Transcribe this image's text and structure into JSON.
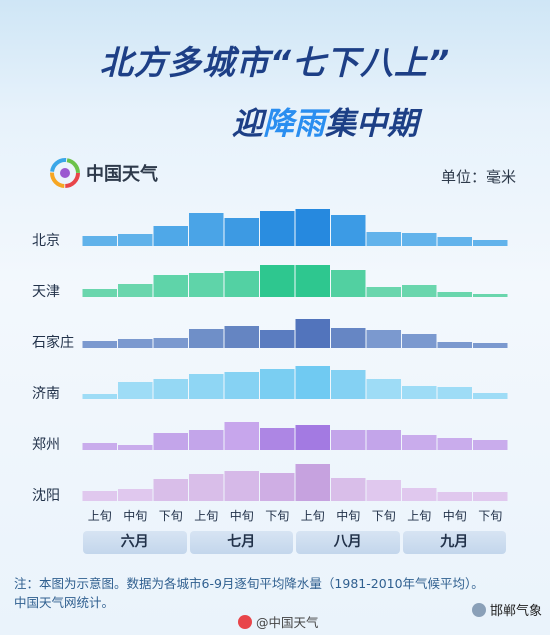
{
  "title": {
    "line1": "北方多城市“七下八上”",
    "line2_pre": "迎",
    "line2_hl": "降雨",
    "line2_post": "集中期"
  },
  "brand": {
    "name": "中国天气",
    "logo_icon": "weather-china-logo-icon"
  },
  "unit_label": "单位：毫米",
  "note": {
    "line1": "注：本图为示意图。数据为各城市6-9月逐旬平均降水量（1981-2010年气候平均）。",
    "line2": "中国天气网统计。"
  },
  "footer": {
    "weibo": "@中国天气",
    "wechat": "邯郸气象"
  },
  "chart_data": {
    "type": "bar",
    "categories": [
      "上旬",
      "中旬",
      "下旬",
      "上旬",
      "中旬",
      "下旬",
      "上旬",
      "中旬",
      "下旬",
      "上旬",
      "中旬",
      "下旬"
    ],
    "months": [
      "六月",
      "七月",
      "八月",
      "九月"
    ],
    "series": [
      {
        "name": "北京",
        "color": "#5aaee8",
        "values": [
          10,
          12,
          20,
          33,
          28,
          35,
          37,
          31,
          14,
          13,
          9,
          6
        ],
        "colors": [
          "#60b2ea",
          "#60b2ea",
          "#4fa8e8",
          "#4aa4e7",
          "#3d9ae3",
          "#2a8de0",
          "#2689df",
          "#3c9be5",
          "#62b3eb",
          "#62b3eb",
          "#62b3eb",
          "#62b3eb"
        ]
      },
      {
        "name": "天津",
        "color": "#5ed3a9",
        "values": [
          8,
          13,
          22,
          24,
          26,
          32,
          32,
          27,
          10,
          12,
          5,
          3
        ],
        "colors": [
          "#6ad6ad",
          "#6ad6ad",
          "#5fd4a9",
          "#5fd4a9",
          "#53d1a3",
          "#2ec78f",
          "#2ec78f",
          "#52d0a1",
          "#6ad6ad",
          "#6ad6ad",
          "#6ad6ad",
          "#6ad6ad"
        ]
      },
      {
        "name": "石家庄",
        "color": "#6f8fc8",
        "values": [
          7,
          9,
          10,
          19,
          22,
          18,
          29,
          20,
          18,
          14,
          6,
          5
        ],
        "colors": [
          "#7b99cf",
          "#7b99cf",
          "#7b99cf",
          "#6f8fc8",
          "#6585c2",
          "#5a7cc0",
          "#5274bc",
          "#6686c4",
          "#7b99cf",
          "#7b99cf",
          "#7b99cf",
          "#7b99cf"
        ]
      },
      {
        "name": "济南",
        "color": "#8fd6f4",
        "values": [
          5,
          17,
          20,
          25,
          27,
          30,
          33,
          29,
          20,
          13,
          12,
          6
        ],
        "colors": [
          "#9edcf6",
          "#9edcf6",
          "#95d8f4",
          "#8fd6f4",
          "#86d2f3",
          "#7acef2",
          "#70caf2",
          "#84d1f3",
          "#9edcf6",
          "#9edcf6",
          "#9edcf6",
          "#9edcf6"
        ]
      },
      {
        "name": "郑州",
        "color": "#c7a6ea",
        "values": [
          7,
          5,
          17,
          20,
          28,
          22,
          25,
          20,
          20,
          15,
          12,
          10
        ],
        "colors": [
          "#c9acec",
          "#c9acec",
          "#c3a5ea",
          "#c3a5ea",
          "#c7a6ec",
          "#ad86e4",
          "#a37ae2",
          "#c3a5ea",
          "#c3a5ea",
          "#c9acec",
          "#c9acec",
          "#c9acec"
        ]
      },
      {
        "name": "沈阳",
        "color": "#d8bde8",
        "values": [
          10,
          12,
          22,
          27,
          30,
          28,
          37,
          23,
          21,
          13,
          9,
          9
        ],
        "colors": [
          "#e0c8ee",
          "#e0c8ee",
          "#d9bee9",
          "#d9bee9",
          "#d6b9e8",
          "#cfaee4",
          "#c6a2df",
          "#d9bee9",
          "#e0c8ee",
          "#e0c8ee",
          "#e0c8ee",
          "#e0c8ee"
        ]
      }
    ]
  }
}
